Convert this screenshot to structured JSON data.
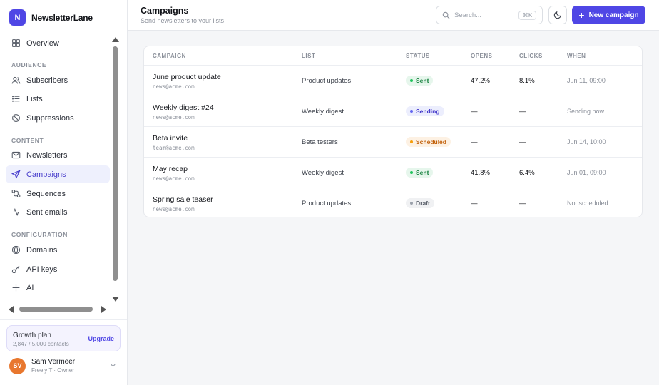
{
  "brand": {
    "logo_letter": "N",
    "name": "NewsletterLane",
    "accent": "#4f46e5"
  },
  "nav": {
    "overview": "Overview",
    "sections": {
      "audience": "AUDIENCE",
      "content": "CONTENT",
      "configuration": "CONFIGURATION"
    },
    "items": {
      "subscribers": "Subscribers",
      "lists": "Lists",
      "suppressions": "Suppressions",
      "newsletters": "Newsletters",
      "campaigns": "Campaigns",
      "sequences": "Sequences",
      "sent_emails": "Sent emails",
      "domains": "Domains",
      "api_keys": "API keys",
      "ai": "AI"
    },
    "active": "campaigns"
  },
  "plan": {
    "title": "Growth plan",
    "usage": "2,847 / 5,000 contacts",
    "upgrade": "Upgrade"
  },
  "user": {
    "initials": "SV",
    "name": "Sam Vermeer",
    "org": "FreelyIT · Owner"
  },
  "header": {
    "title": "Campaigns",
    "subtitle": "Send newsletters to your lists",
    "search_placeholder": "Search...",
    "search_shortcut": "⌘K",
    "new_button": "New campaign"
  },
  "table": {
    "columns": {
      "campaign": "CAMPAIGN",
      "list": "LIST",
      "status": "STATUS",
      "opens": "OPENS",
      "clicks": "CLICKS",
      "when": "WHEN"
    },
    "rows": [
      {
        "name": "June product update",
        "from": "news@acme.com",
        "list": "Product updates",
        "status": "Sent",
        "opens": "47.2%",
        "clicks": "8.1%",
        "when": "Jun 11, 09:00"
      },
      {
        "name": "Weekly digest #24",
        "from": "news@acme.com",
        "list": "Weekly digest",
        "status": "Sending",
        "opens": "—",
        "clicks": "—",
        "when": "Sending now"
      },
      {
        "name": "Beta invite",
        "from": "team@acme.com",
        "list": "Beta testers",
        "status": "Scheduled",
        "opens": "—",
        "clicks": "—",
        "when": "Jun 14, 10:00"
      },
      {
        "name": "May recap",
        "from": "news@acme.com",
        "list": "Weekly digest",
        "status": "Sent",
        "opens": "41.8%",
        "clicks": "6.4%",
        "when": "Jun 01, 09:00"
      },
      {
        "name": "Spring sale teaser",
        "from": "news@acme.com",
        "list": "Product updates",
        "status": "Draft",
        "opens": "—",
        "clicks": "—",
        "when": "Not scheduled"
      }
    ]
  },
  "status_colors": {
    "Sent": {
      "bg": "#e6f6ec",
      "fg": "#15803d",
      "dot": "#22c55e"
    },
    "Sending": {
      "bg": "#eceefd",
      "fg": "#4338ca",
      "dot": "#6366f1"
    },
    "Scheduled": {
      "bg": "#fdf1e3",
      "fg": "#c2610c",
      "dot": "#f59e0b"
    },
    "Draft": {
      "bg": "#f0f1f3",
      "fg": "#5b616b",
      "dot": "#9aa0aa"
    }
  }
}
